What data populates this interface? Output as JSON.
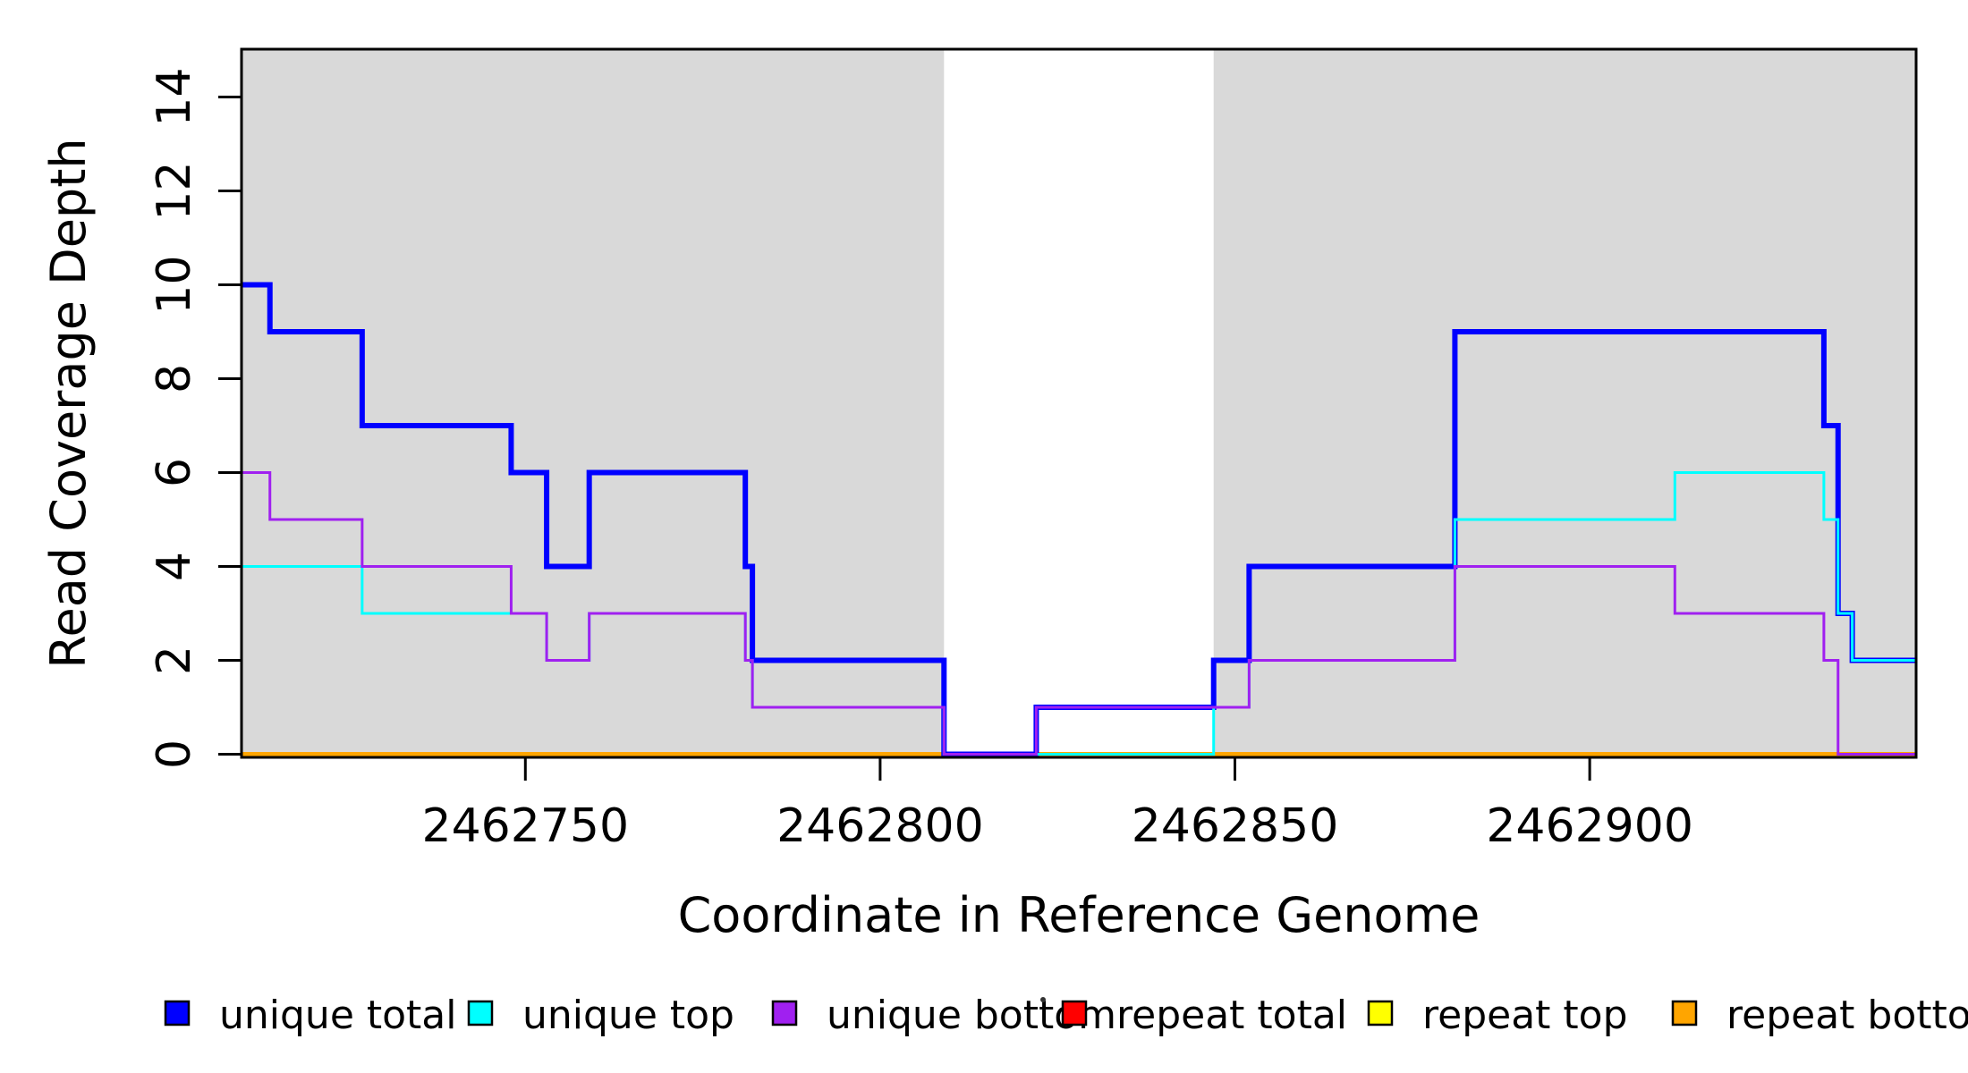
{
  "figure": {
    "background": "#FFFFFF",
    "highlight_fill": "#D9D9D9",
    "box_color": "#000000"
  },
  "chart_data": {
    "type": "line",
    "subtype": "step",
    "title": "",
    "xlabel": "Coordinate in Reference Genome",
    "ylabel": "Read Coverage Depth",
    "xlim": [
      2462710,
      2462946
    ],
    "ylim": [
      0,
      15
    ],
    "x_ticks": [
      2462750,
      2462800,
      2462850,
      2462900
    ],
    "y_ticks": [
      0,
      2,
      4,
      6,
      8,
      10,
      12,
      14
    ],
    "grid": false,
    "legend_position": "bottom",
    "highlight_regions": [
      {
        "name": "left-gray-region",
        "from": 2462710,
        "to": 2462809
      },
      {
        "name": "right-gray-region",
        "from": 2462847,
        "to": 2462946
      }
    ],
    "series": [
      {
        "name": "repeat total",
        "color": "#FF0000",
        "width": 3,
        "end": 2462946,
        "points": [
          [
            2462710,
            0
          ]
        ]
      },
      {
        "name": "repeat top",
        "color": "#FFFF00",
        "width": 3,
        "end": 2462946,
        "points": [
          [
            2462710,
            0
          ]
        ]
      },
      {
        "name": "repeat bottom",
        "color": "#FFA500",
        "width": 5,
        "end": 2462946,
        "points": [
          [
            2462710,
            0
          ]
        ]
      },
      {
        "name": "unique total",
        "color": "#0000FF",
        "width": 6,
        "end": 2462946,
        "points": [
          [
            2462710,
            10
          ],
          [
            2462714,
            9
          ],
          [
            2462727,
            7
          ],
          [
            2462748,
            6
          ],
          [
            2462753,
            4
          ],
          [
            2462759,
            6
          ],
          [
            2462781,
            4
          ],
          [
            2462782,
            2
          ],
          [
            2462809,
            0
          ],
          [
            2462822,
            1
          ],
          [
            2462847,
            2
          ],
          [
            2462852,
            4
          ],
          [
            2462881,
            9
          ],
          [
            2462933,
            7
          ],
          [
            2462935,
            3
          ],
          [
            2462937,
            2
          ]
        ]
      },
      {
        "name": "unique top",
        "color": "#00FFFF",
        "width": 3,
        "end": 2462946,
        "points": [
          [
            2462710,
            4
          ],
          [
            2462727,
            3
          ],
          [
            2462753,
            2
          ],
          [
            2462759,
            3
          ],
          [
            2462781,
            2
          ],
          [
            2462782,
            1
          ],
          [
            2462809,
            0
          ],
          [
            2462847,
            1
          ],
          [
            2462852,
            2
          ],
          [
            2462881,
            5
          ],
          [
            2462912,
            6
          ],
          [
            2462933,
            5
          ],
          [
            2462935,
            3
          ],
          [
            2462937,
            2
          ]
        ]
      },
      {
        "name": "unique bottom",
        "color": "#A020F0",
        "width": 3,
        "end": 2462946,
        "points": [
          [
            2462710,
            6
          ],
          [
            2462714,
            5
          ],
          [
            2462727,
            4
          ],
          [
            2462748,
            3
          ],
          [
            2462753,
            2
          ],
          [
            2462759,
            3
          ],
          [
            2462781,
            2
          ],
          [
            2462782,
            1
          ],
          [
            2462809,
            0
          ],
          [
            2462822,
            1
          ],
          [
            2462852,
            2
          ],
          [
            2462881,
            4
          ],
          [
            2462912,
            3
          ],
          [
            2462933,
            2
          ],
          [
            2462935,
            0
          ]
        ]
      }
    ],
    "legend": [
      {
        "label": "unique total",
        "color": "#0000FF"
      },
      {
        "label": "unique top",
        "color": "#00FFFF"
      },
      {
        "label": "unique bottom",
        "color": "#A020F0"
      },
      {
        "label": "repeat total",
        "color": "#FF0000"
      },
      {
        "label": "repeat top",
        "color": "#FFFF00"
      },
      {
        "label": "repeat bottom",
        "color": "#FFA500"
      }
    ],
    "annotations": [
      {
        "name": "stray-dot",
        "text": "·"
      }
    ]
  }
}
